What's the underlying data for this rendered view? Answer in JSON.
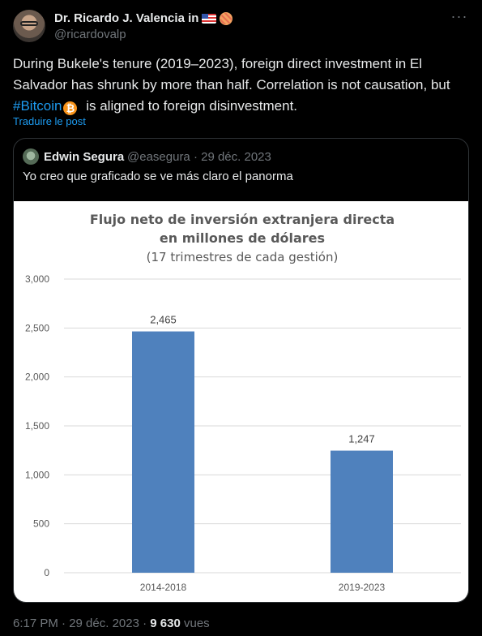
{
  "author": {
    "name": "Dr. Ricardo J. Valencia in",
    "handle": "@ricardovalp"
  },
  "tweet": {
    "text_part1": "During Bukele's tenure (2019–2023), foreign direct investment in El Salvador has shrunk by more than half. Correlation is not causation, but ",
    "hashtag": "#Bitcoin",
    "text_part2": " is aligned to foreign disinvestment.",
    "translate_label": "Traduire le post"
  },
  "quote": {
    "name": "Edwin Segura",
    "handle_date": "@easegura · 29 déc. 2023",
    "text": "Yo creo que graficado se ve más claro el panorma"
  },
  "chart_data": {
    "type": "bar",
    "title": "Flujo  neto de inversión extranjera directa",
    "title_line2": "en millones de dólares",
    "subtitle": "(17 trimestres de cada gestión)",
    "categories": [
      "2014-2018",
      "2019-2023"
    ],
    "values": [
      2465,
      1247
    ],
    "data_labels": [
      "2,465",
      "1,247"
    ],
    "ylim": [
      0,
      3000
    ],
    "yticks": [
      0,
      500,
      1000,
      1500,
      2000,
      2500,
      3000
    ],
    "ytick_labels": [
      "0",
      "500",
      "1,000",
      "1,500",
      "2,000",
      "2,500",
      "3,000"
    ],
    "grid": true,
    "bar_color": "#4f81bd"
  },
  "footer": {
    "time": "6:17 PM · 29 déc. 2023 · ",
    "views_count": "9 630",
    "views_label": " vues"
  },
  "colors": {
    "background": "#000000",
    "text": "#e7e9ea",
    "muted": "#71767b",
    "link": "#1d9bf0"
  }
}
